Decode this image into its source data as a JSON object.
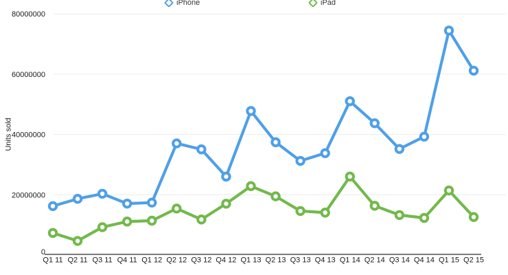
{
  "chart_data": {
    "type": "line",
    "title": "",
    "xlabel": "",
    "ylabel": "Units sold",
    "x_categories": [
      "Q1 11",
      "Q2 11",
      "Q3 11",
      "Q4 11",
      "Q1 12",
      "Q2 12",
      "Q3 12",
      "Q4 12",
      "Q1 13",
      "Q2 13",
      "Q3 13",
      "Q4 13",
      "Q1 14",
      "Q2 14",
      "Q3 14",
      "Q4 14",
      "Q1 15",
      "Q2 15"
    ],
    "y_ticks": [
      0,
      20000000,
      40000000,
      60000000,
      80000000
    ],
    "y_tick_labels": [
      "0",
      "20000000",
      "40000000",
      "60000000",
      "80000000"
    ],
    "ylim": [
      0,
      80000000
    ],
    "grid": true,
    "legend_position": "top-center",
    "series": [
      {
        "name": "iPhone",
        "color": "#4f9fe8",
        "values": [
          16240000,
          18650000,
          20340000,
          17070000,
          17400000,
          37040000,
          35060000,
          26030000,
          47790000,
          37430000,
          31240000,
          33800000,
          51030000,
          43720000,
          35200000,
          39270000,
          74470000,
          61170000
        ]
      },
      {
        "name": "iPad",
        "color": "#72b94b",
        "values": [
          7330000,
          4690000,
          9250000,
          11120000,
          11400000,
          15430000,
          11800000,
          17040000,
          22860000,
          19480000,
          14620000,
          14080000,
          26040000,
          16350000,
          13280000,
          12320000,
          21420000,
          12620000
        ]
      }
    ]
  },
  "colors": {
    "background": "#ffffff",
    "gridline": "#ececec",
    "axis_line": "#7b7b7b",
    "tick_text": "#1a1a1a",
    "legend_text": "#333333"
  }
}
